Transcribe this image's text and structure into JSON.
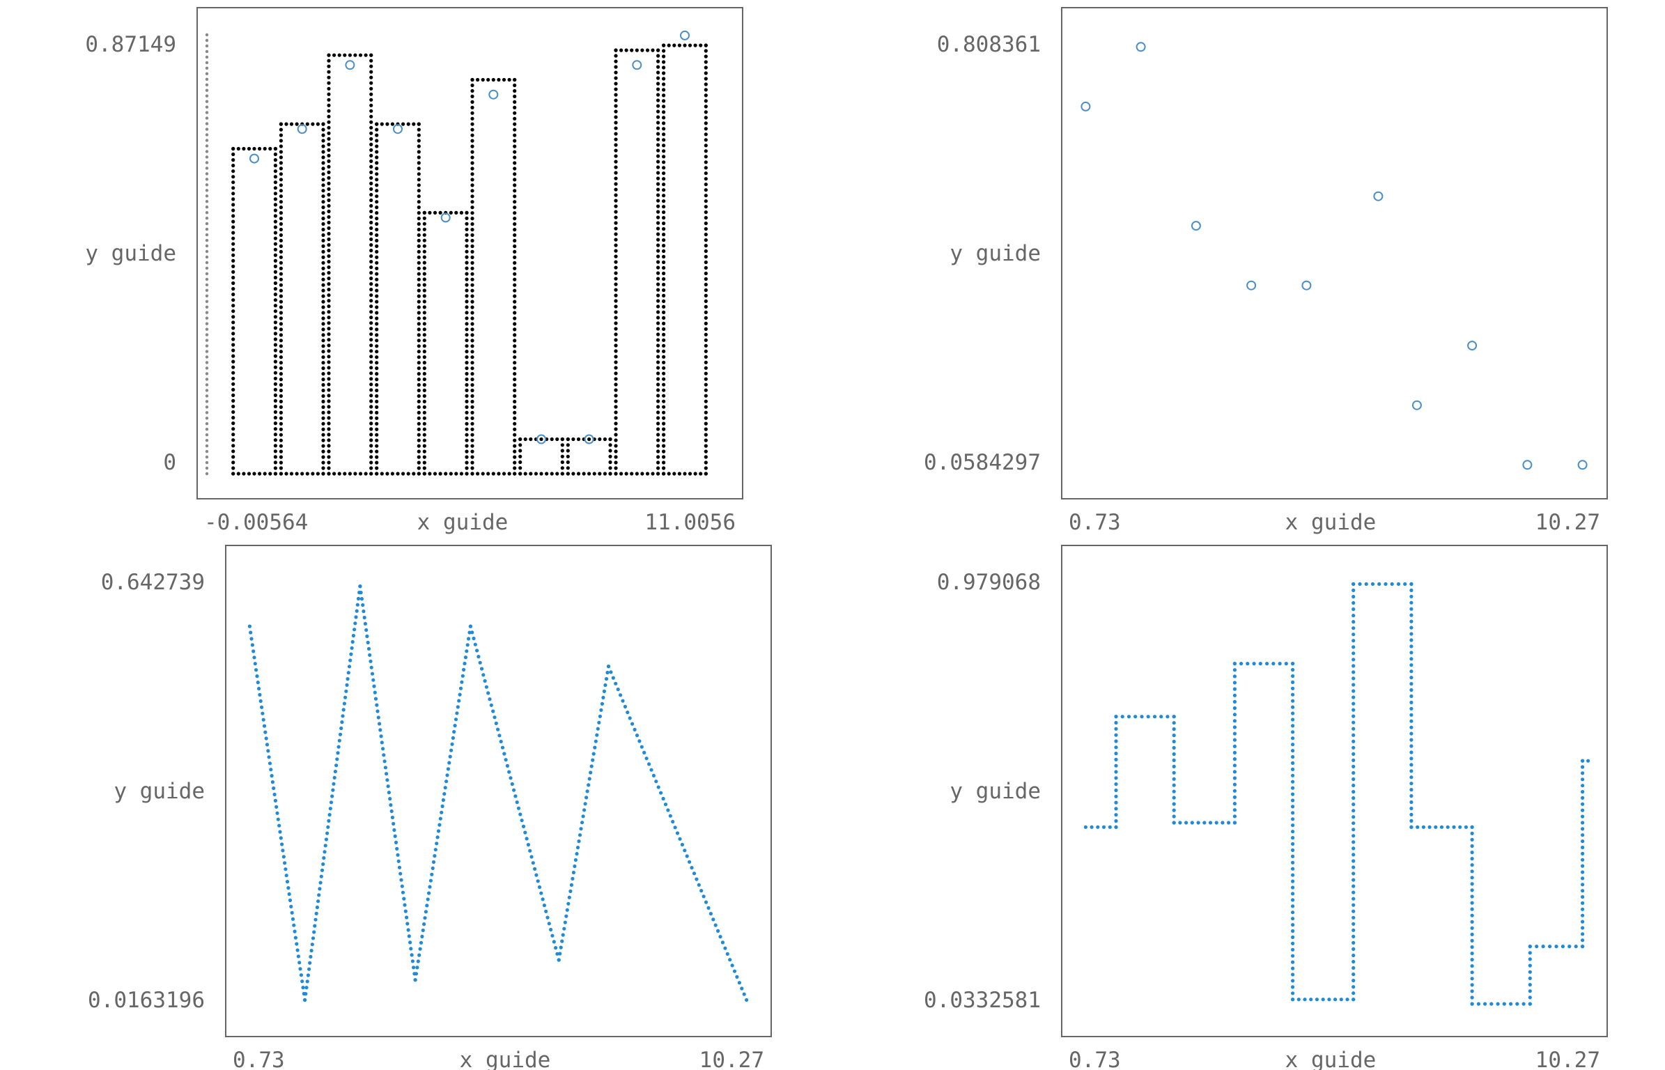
{
  "colors": {
    "axis": "#666666",
    "black_series": "#000000",
    "blue_series": "#1f8ad6",
    "marker": "#4a8fc7",
    "bar_outline": "#000000"
  },
  "chart_data": [
    {
      "type": "bar",
      "subtype": "histogram-outline-with-markers",
      "xlabel": "x guide",
      "ylabel": "y guide",
      "x_tick_labels": [
        "-0.00564",
        "11.0056"
      ],
      "y_tick_labels": [
        "0",
        "0.87149"
      ],
      "xlim": [
        -0.00564,
        11.0056
      ],
      "ylim": [
        0,
        0.87149
      ],
      "bars": {
        "edges": [
          0.5,
          1.5,
          2.5,
          3.5,
          4.5,
          5.5,
          6.5,
          7.5,
          8.5,
          9.5,
          10.5
        ],
        "values": [
          0.66,
          0.71,
          0.85,
          0.71,
          0.53,
          0.8,
          0.07,
          0.07,
          0.86,
          0.87
        ]
      },
      "markers": {
        "x": [
          1,
          2,
          3,
          4,
          5,
          6,
          7,
          8,
          9,
          10
        ],
        "y": [
          0.64,
          0.7,
          0.83,
          0.7,
          0.52,
          0.77,
          0.07,
          0.07,
          0.83,
          0.89
        ]
      },
      "grid": false,
      "legend": "none"
    },
    {
      "type": "scatter",
      "xlabel": "x guide",
      "ylabel": "y guide",
      "x_tick_labels": [
        "0.73",
        "10.27"
      ],
      "y_tick_labels": [
        "0.0584297",
        "0.808361"
      ],
      "xlim": [
        0.73,
        10.27
      ],
      "ylim": [
        0.0584297,
        0.808361
      ],
      "x": [
        1,
        2,
        3,
        4,
        5,
        6.3,
        7,
        8,
        9,
        10
      ],
      "y": [
        0.701,
        0.808,
        0.487,
        0.38,
        0.38,
        0.54,
        0.165,
        0.272,
        0.058,
        0.058
      ],
      "grid": false,
      "legend": "none"
    },
    {
      "type": "line",
      "xlabel": "x guide",
      "ylabel": "y guide",
      "x_tick_labels": [
        "0.73",
        "10.27"
      ],
      "y_tick_labels": [
        "0.0163196",
        "0.642739"
      ],
      "xlim": [
        0.73,
        10.27
      ],
      "ylim": [
        0.0163196,
        0.642739
      ],
      "x": [
        1,
        2,
        3,
        4,
        5,
        6.6,
        7.5,
        10
      ],
      "y": [
        0.58,
        0.02,
        0.64,
        0.05,
        0.58,
        0.08,
        0.52,
        0.02
      ],
      "grid": false,
      "legend": "none"
    },
    {
      "type": "line",
      "subtype": "step",
      "xlabel": "x guide",
      "ylabel": "y guide",
      "x_tick_labels": [
        "0.73",
        "10.27"
      ],
      "y_tick_labels": [
        "0.0332581",
        "0.979068"
      ],
      "xlim": [
        0.73,
        10.27
      ],
      "ylim": [
        0.0332581,
        0.979068
      ],
      "x": [
        1,
        1.55,
        2.6,
        3.7,
        4.75,
        5.85,
        6.9,
        8,
        9.05,
        10
      ],
      "y": [
        0.43,
        0.68,
        0.44,
        0.8,
        0.04,
        0.98,
        0.43,
        0.03,
        0.16,
        0.58
      ],
      "grid": false,
      "legend": "none"
    }
  ]
}
